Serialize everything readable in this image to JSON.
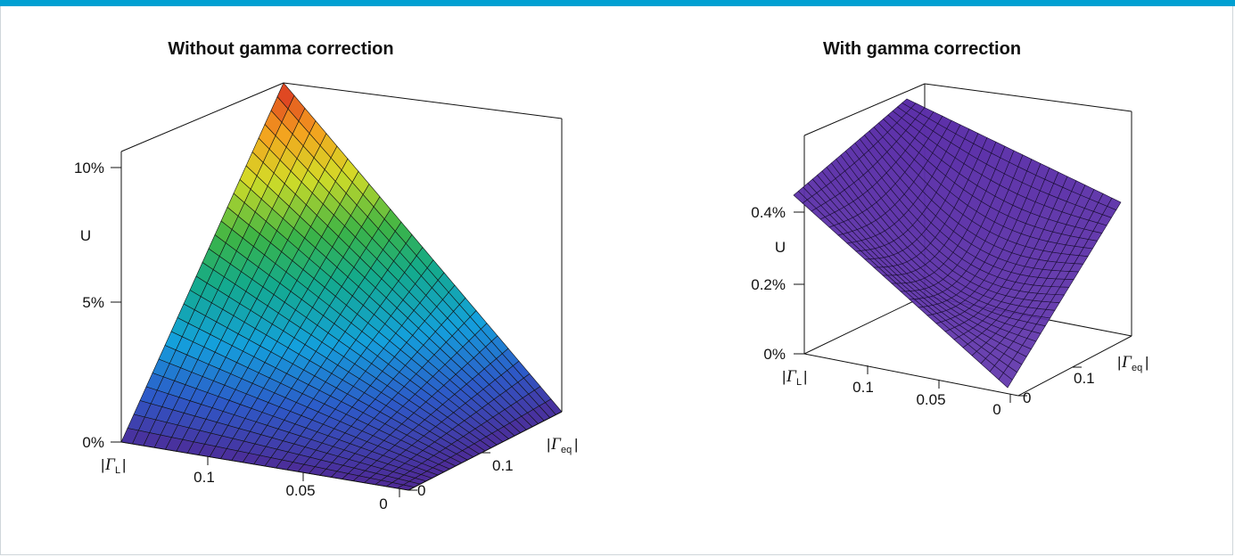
{
  "page": {
    "accent_color": "#00a0d2"
  },
  "chart_data": [
    {
      "type": "surface",
      "title": "Without gamma correction",
      "zlabel": "U",
      "zticks": [
        "0%",
        "5%",
        "10%"
      ],
      "zlim": [
        0,
        12
      ],
      "x_axis": {
        "label_prefix": "|",
        "label_symbol": "Γ",
        "label_sub": "L",
        "label_suffix": "|",
        "ticks": [
          "0",
          "0.05",
          "0.1"
        ],
        "range": [
          0,
          0.15
        ]
      },
      "y_axis": {
        "label_prefix": "|",
        "label_symbol": "Γ",
        "label_sub": "eq",
        "label_suffix": "|",
        "ticks": [
          "0",
          "0.1"
        ],
        "range": [
          0,
          0.15
        ]
      },
      "colormap": "parula-jet",
      "corner_values": {
        "gl0_geq0": 0,
        "gl_max_geq0": 0,
        "gl0_geq_max": 0,
        "gl_max_geq_max": 12
      }
    },
    {
      "type": "surface",
      "title": "With gamma correction",
      "zlabel": "U",
      "zticks": [
        "0%",
        "0.2%",
        "0.4%"
      ],
      "zlim": [
        0,
        0.6
      ],
      "x_axis": {
        "label_prefix": "|",
        "label_symbol": "Γ",
        "label_sub": "L",
        "label_suffix": "|",
        "ticks": [
          "0",
          "0.05",
          "0.1"
        ],
        "range": [
          0,
          0.15
        ]
      },
      "y_axis": {
        "label_prefix": "|",
        "label_symbol": "Γ",
        "label_sub": "eq",
        "label_suffix": "|",
        "ticks": [
          "0",
          "0.1"
        ],
        "range": [
          0,
          0.15
        ]
      },
      "colormap": "uniform",
      "surface_color": "#5b2fa8"
    }
  ]
}
